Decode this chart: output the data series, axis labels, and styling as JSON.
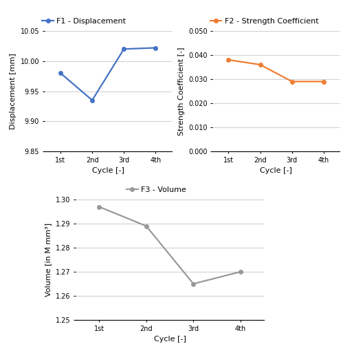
{
  "cycles": [
    "1st",
    "2nd",
    "3rd",
    "4th"
  ],
  "f1_values": [
    9.98,
    9.935,
    10.02,
    10.022
  ],
  "f1_color": "#4472C4",
  "f1_label": "F1 - Displacement",
  "f1_ylabel": "Displacement [mm]",
  "f1_ylim": [
    9.85,
    10.05
  ],
  "f1_yticks": [
    9.85,
    9.9,
    9.95,
    10.0,
    10.05
  ],
  "f2_values": [
    0.038,
    0.036,
    0.029,
    0.029
  ],
  "f2_color": "#ED7D31",
  "f2_label": "F2 - Strength Coefficient",
  "f2_ylabel": "Strength Coefficient [-]",
  "f2_ylim": [
    0.0,
    0.05
  ],
  "f2_yticks": [
    0.0,
    0.01,
    0.02,
    0.03,
    0.04,
    0.05
  ],
  "f3_values": [
    1.297,
    1.289,
    1.265,
    1.27
  ],
  "f3_color": "#999999",
  "f3_label": "F3 - Volume",
  "f3_ylabel": "Volume [in M mm³]",
  "f3_ylim": [
    1.25,
    1.3
  ],
  "f3_yticks": [
    1.25,
    1.26,
    1.27,
    1.28,
    1.29,
    1.3
  ],
  "xlabel": "Cycle [-]",
  "marker": "o",
  "markersize": 4,
  "linewidth": 1.6,
  "grid_color": "#D0D0D0",
  "background_color": "#FFFFFF",
  "tick_fontsize": 7,
  "label_fontsize": 8,
  "legend_fontsize": 8
}
